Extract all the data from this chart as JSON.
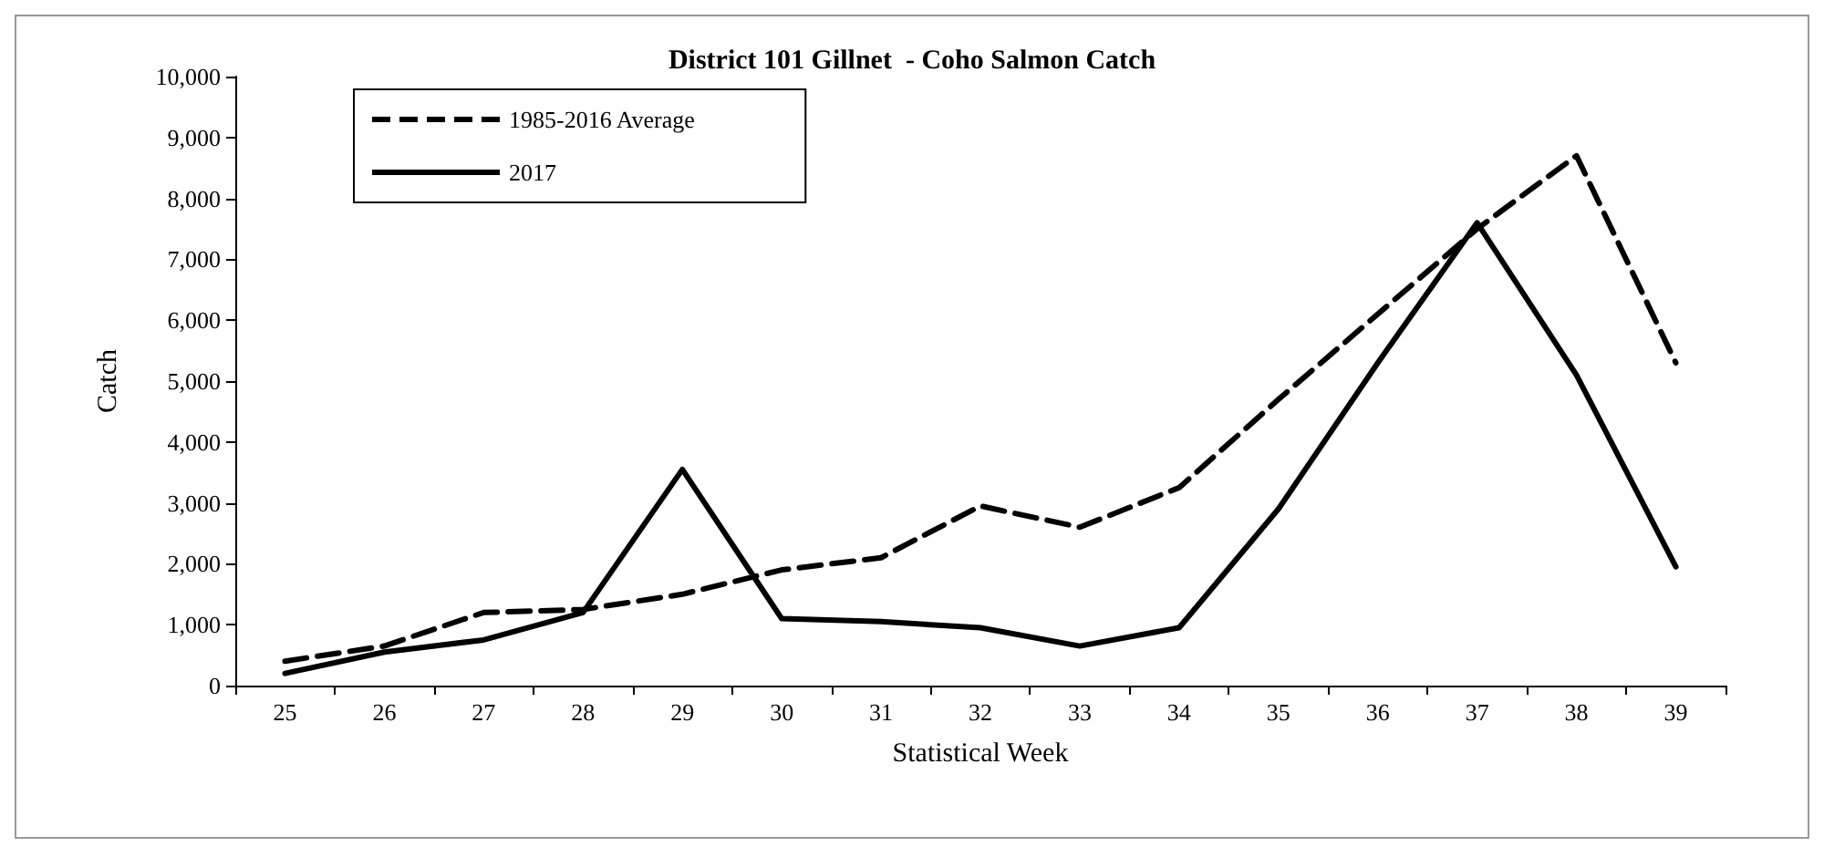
{
  "chart_data": {
    "type": "line",
    "title": "District 101 Gillnet  - Coho Salmon Catch",
    "xlabel": "Statistical Week",
    "ylabel": "Catch",
    "categories": [
      "25",
      "26",
      "27",
      "28",
      "29",
      "30",
      "31",
      "32",
      "33",
      "34",
      "35",
      "36",
      "37",
      "38",
      "39"
    ],
    "series": [
      {
        "name": "1985-2016 Average",
        "color": "#000000",
        "line_style": "dashed",
        "values": [
          400,
          650,
          1200,
          1250,
          1500,
          1900,
          2100,
          2950,
          2600,
          3250,
          4700,
          6100,
          7500,
          8700,
          5300
        ]
      },
      {
        "name": "2017",
        "color": "#000000",
        "line_style": "solid",
        "values": [
          200,
          550,
          750,
          1200,
          3550,
          1100,
          1050,
          950,
          650,
          950,
          2900,
          5300,
          7600,
          5100,
          1950
        ]
      }
    ],
    "ylim": [
      0,
      10000
    ],
    "yticks": [
      {
        "value": 0,
        "label": "0"
      },
      {
        "value": 1000,
        "label": "1,000"
      },
      {
        "value": 2000,
        "label": "2,000"
      },
      {
        "value": 3000,
        "label": "3,000"
      },
      {
        "value": 4000,
        "label": "4,000"
      },
      {
        "value": 5000,
        "label": "5,000"
      },
      {
        "value": 6000,
        "label": "6,000"
      },
      {
        "value": 7000,
        "label": "7,000"
      },
      {
        "value": 8000,
        "label": "8,000"
      },
      {
        "value": 9000,
        "label": "9,000"
      },
      {
        "value": 10000,
        "label": "10,000"
      }
    ],
    "grid": false,
    "legend": "top left",
    "marker": "none"
  }
}
